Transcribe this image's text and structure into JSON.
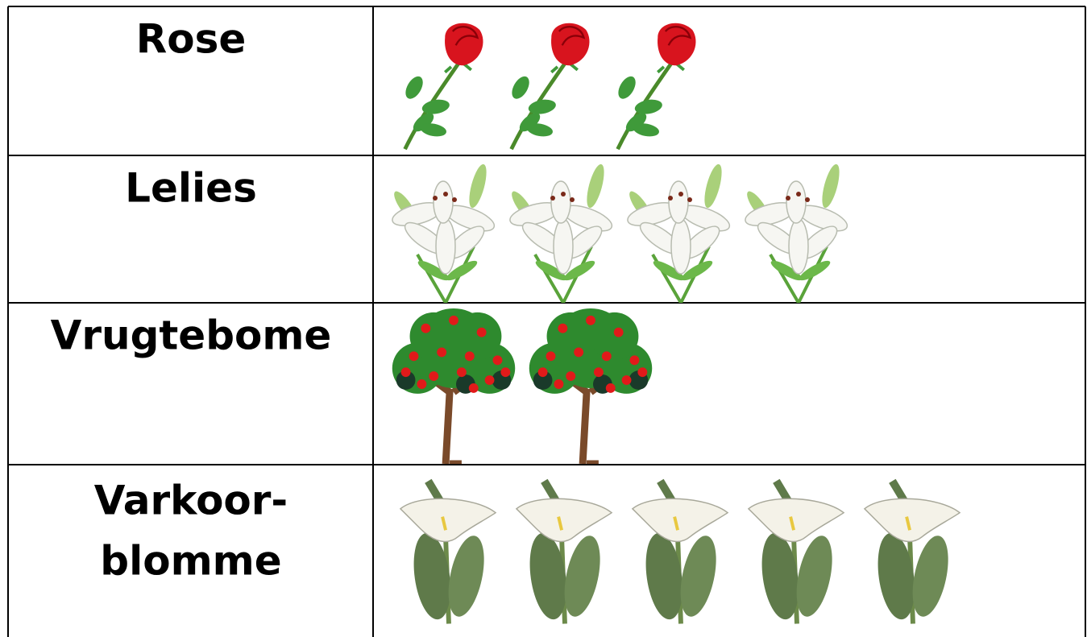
{
  "table": {
    "rows": [
      {
        "label": [
          "Rose"
        ],
        "count": 3
      },
      {
        "label": [
          "Lelies"
        ],
        "count": 4
      },
      {
        "label": [
          "Vrugtebome"
        ],
        "count": 2
      },
      {
        "label": [
          "Varkoor-",
          "blomme"
        ],
        "count": 5
      }
    ]
  }
}
